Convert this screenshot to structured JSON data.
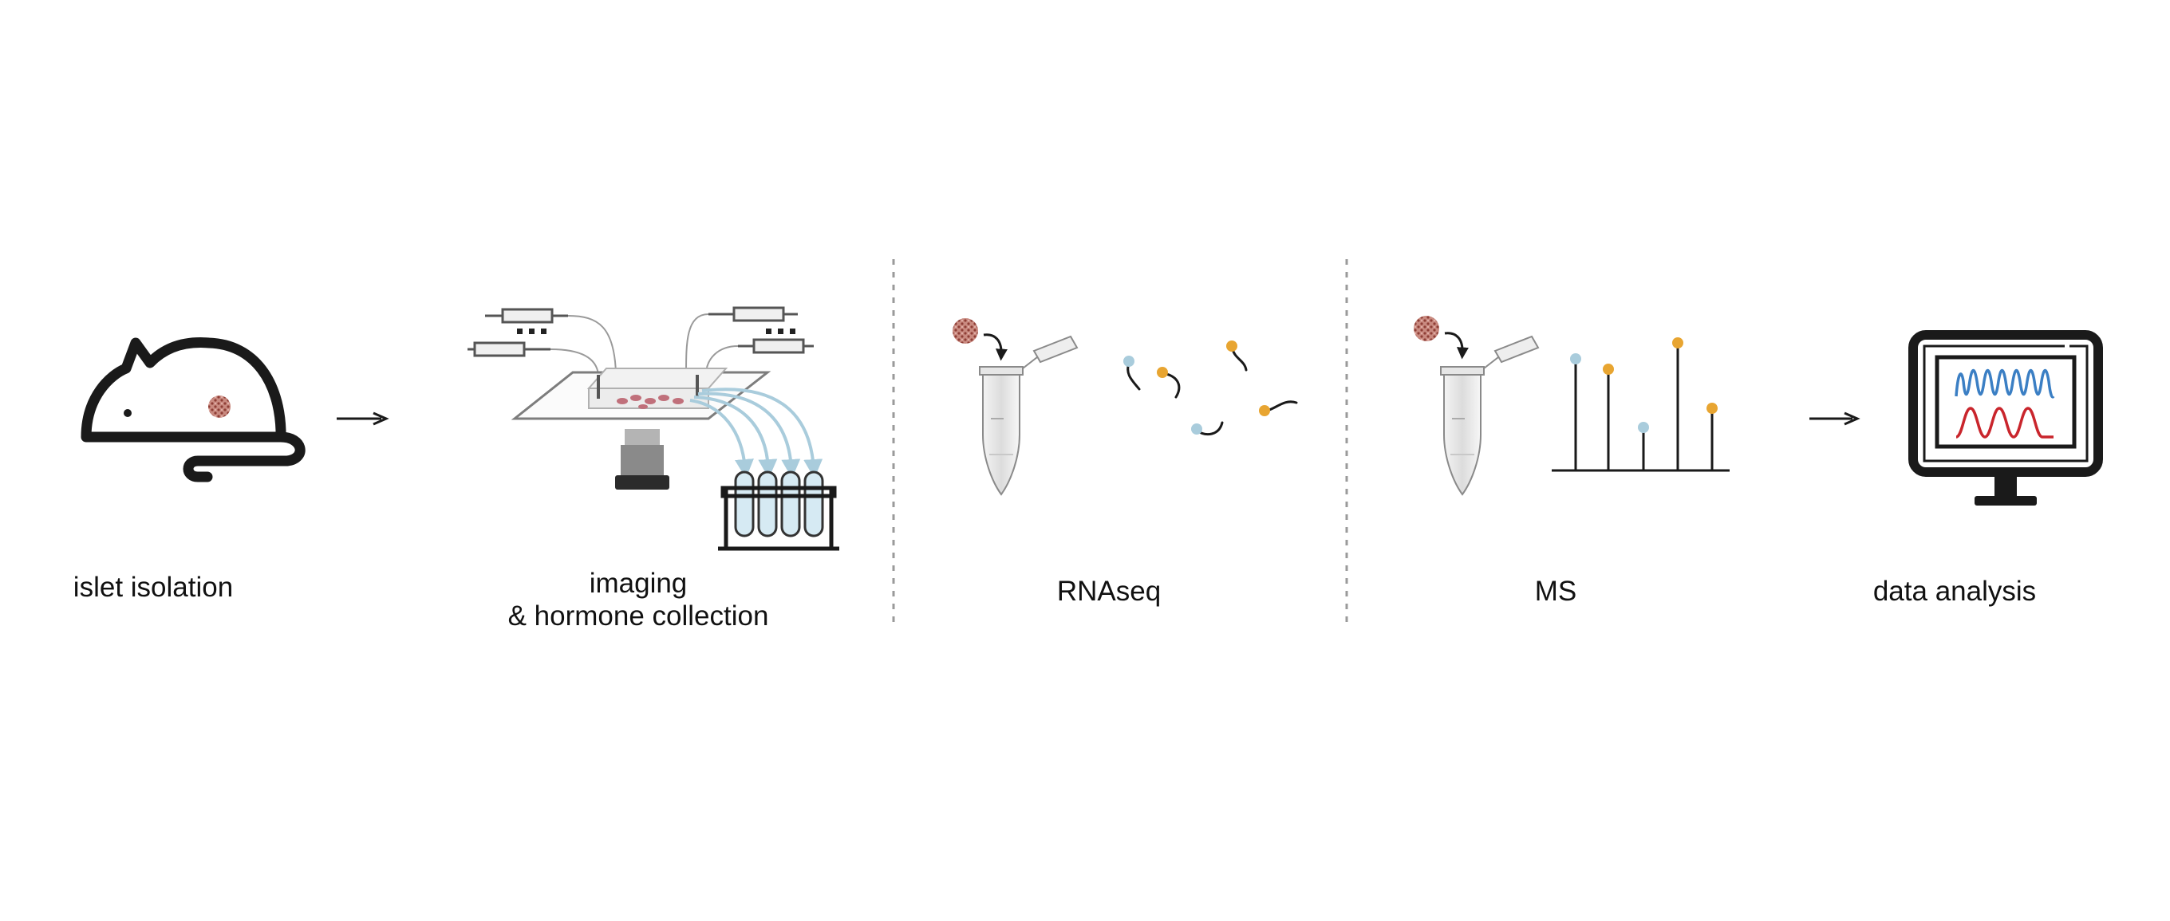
{
  "steps": {
    "islet": {
      "label": "islet isolation"
    },
    "imaging": {
      "line1": "imaging",
      "line2": "& hormone collection"
    },
    "rnaseq": {
      "label": "RNAseq"
    },
    "ms": {
      "label": "MS"
    },
    "analysis": {
      "label": "data analysis"
    }
  },
  "colors": {
    "line": "#1a1a1a",
    "islet": "#b5655b",
    "blue_dot": "#a9ccdc",
    "orange_dot": "#e8a531",
    "signal_blue": "#3b7fc4",
    "signal_red": "#c9252c",
    "divider": "#9a9a9a",
    "flow_arrow": "#a9ccdc"
  },
  "icons": [
    "mouse-icon",
    "arrow-icon",
    "perfusion-setup-icon",
    "microscope-icon",
    "collection-tubes-icon",
    "eppendorf-tube-icon",
    "rna-fragments-icon",
    "mass-spectrum-icon",
    "monitor-icon"
  ]
}
